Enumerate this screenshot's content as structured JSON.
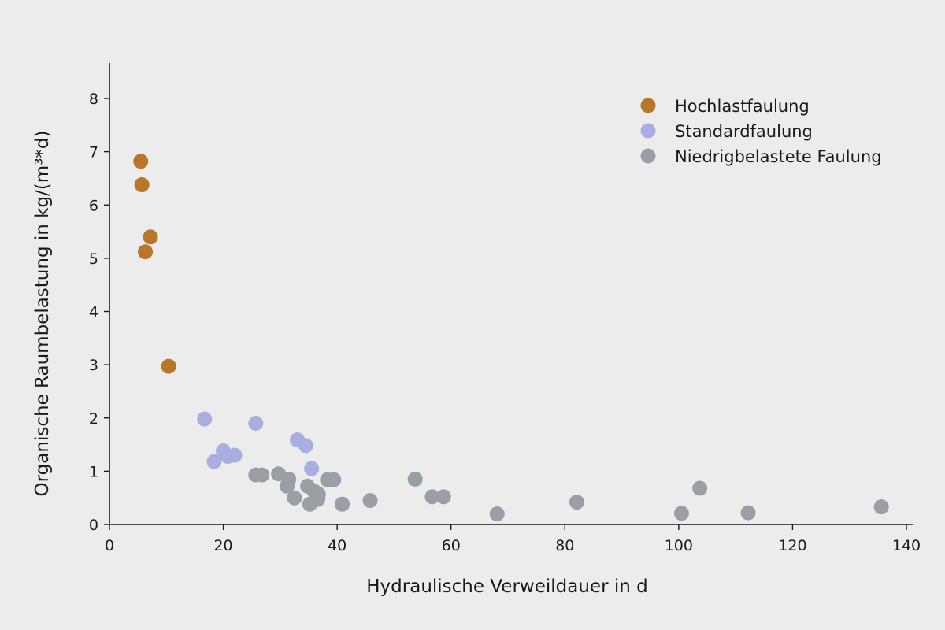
{
  "chart_data": {
    "type": "scatter",
    "xlabel": "Hydraulische Verweildauer in d",
    "ylabel": "Organische Raumbelastung in kg/(m³*d)",
    "xlim": [
      0,
      140
    ],
    "ylim": [
      0,
      8
    ],
    "xticks": [
      0,
      20,
      40,
      60,
      80,
      100,
      120,
      140
    ],
    "yticks": [
      0,
      1,
      2,
      3,
      4,
      5,
      6,
      7,
      8
    ],
    "grid": false,
    "legend_position": "top-right",
    "series": [
      {
        "name": "Hochlastfaulung",
        "color": "#b8762b",
        "points": [
          [
            5.5,
            6.82
          ],
          [
            5.7,
            6.38
          ],
          [
            7.2,
            5.4
          ],
          [
            6.3,
            5.12
          ],
          [
            10.4,
            2.97
          ]
        ]
      },
      {
        "name": "Standardfaulung",
        "color": "#a9addf",
        "points": [
          [
            16.7,
            1.98
          ],
          [
            25.7,
            1.9
          ],
          [
            33.0,
            1.59
          ],
          [
            34.5,
            1.48
          ],
          [
            20.0,
            1.38
          ],
          [
            20.8,
            1.28
          ],
          [
            22.0,
            1.3
          ],
          [
            18.4,
            1.18
          ],
          [
            35.5,
            1.05
          ]
        ]
      },
      {
        "name": "Niedrigbelastete Faulung",
        "color": "#9a9fa6",
        "points": [
          [
            25.7,
            0.93
          ],
          [
            26.8,
            0.93
          ],
          [
            29.7,
            0.95
          ],
          [
            31.5,
            0.85
          ],
          [
            31.2,
            0.72
          ],
          [
            32.5,
            0.5
          ],
          [
            34.8,
            0.72
          ],
          [
            35.2,
            0.38
          ],
          [
            36.0,
            0.62
          ],
          [
            36.7,
            0.57
          ],
          [
            36.6,
            0.47
          ],
          [
            38.3,
            0.84
          ],
          [
            39.4,
            0.84
          ],
          [
            40.9,
            0.38
          ],
          [
            45.8,
            0.45
          ],
          [
            53.7,
            0.85
          ],
          [
            56.7,
            0.52
          ],
          [
            58.7,
            0.52
          ],
          [
            68.1,
            0.2
          ],
          [
            82.1,
            0.42
          ],
          [
            100.5,
            0.21
          ],
          [
            103.7,
            0.68
          ],
          [
            112.2,
            0.22
          ],
          [
            135.6,
            0.33
          ]
        ]
      }
    ]
  }
}
